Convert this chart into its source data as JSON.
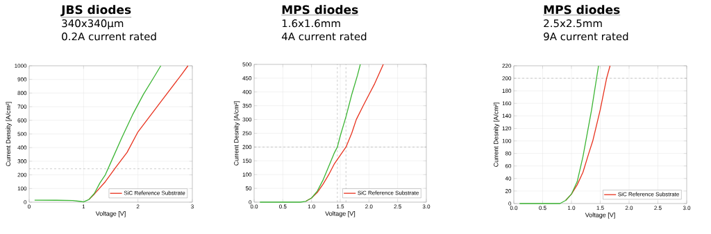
{
  "chart_data": [
    {
      "type": "line",
      "title": "JBS diodes",
      "subtitle": [
        "340x340µm",
        "0.2A current rated"
      ],
      "xlabel": "Voltage [V]",
      "ylabel": "Current Density [A/cm²]",
      "xlim": [
        0,
        3
      ],
      "ylim": [
        0,
        1000
      ],
      "xticks": [
        0,
        1,
        2,
        3
      ],
      "yticks": [
        0,
        100,
        200,
        300,
        400,
        500,
        600,
        700,
        800,
        900,
        1000
      ],
      "grid": true,
      "legend": "bottom right",
      "line_style": "solid",
      "marker": "none",
      "ref_lines": [
        {
          "axis": "y",
          "value": 245,
          "color": "#808080",
          "line_style": "dashed"
        }
      ],
      "series": [
        {
          "name": "SiC Reference Substrate",
          "color": "#e8321e",
          "x": [
            1.1,
            1.2,
            1.4,
            1.6,
            1.8,
            2.0,
            2.2,
            2.4,
            2.6,
            2.8,
            2.92
          ],
          "values": [
            20,
            60,
            150,
            260,
            365,
            515,
            620,
            725,
            830,
            935,
            1000
          ]
        },
        {
          "color": "#3cb534",
          "x": [
            0.1,
            0.5,
            0.8,
            0.95,
            1.0,
            1.1,
            1.2,
            1.3,
            1.4,
            1.5,
            1.7,
            1.9,
            2.1,
            2.3,
            2.42
          ],
          "values": [
            15,
            14,
            12,
            5,
            2,
            20,
            65,
            140,
            200,
            290,
            470,
            640,
            790,
            920,
            1000
          ]
        }
      ]
    },
    {
      "type": "line",
      "title": "MPS diodes",
      "subtitle": [
        "1.6x1.6mm",
        "4A current rated"
      ],
      "xlabel": "Voltage [V]",
      "ylabel": "Current Desnity [A/cm²]",
      "xlim": [
        0,
        3
      ],
      "ylim": [
        0,
        500
      ],
      "xticks": [
        {
          "value": 0,
          "label": "0.0"
        },
        0.5,
        {
          "value": 1,
          "label": "1.0"
        },
        1.5,
        {
          "value": 2,
          "label": "2.0"
        },
        2.5,
        {
          "value": 3,
          "label": "3.0"
        }
      ],
      "yticks": [
        0,
        50,
        100,
        150,
        200,
        250,
        300,
        350,
        400,
        450,
        500
      ],
      "grid": true,
      "legend": "bottom right",
      "line_style": "solid",
      "marker": "none",
      "ref_lines": [
        {
          "axis": "y",
          "value": 200,
          "color": "#808080",
          "line_style": "dashed"
        },
        {
          "axis": "x",
          "value": 1.45,
          "color": "#808080",
          "line_style": "dashed"
        },
        {
          "axis": "x",
          "value": 1.6,
          "color": "#808080",
          "line_style": "dashed"
        }
      ],
      "series": [
        {
          "name": "SiC Reference Substrate",
          "color": "#e8321e",
          "x": [
            0.9,
            1.0,
            1.1,
            1.2,
            1.3,
            1.4,
            1.5,
            1.6,
            1.7,
            1.78,
            1.9,
            2.0,
            2.1,
            2.25
          ],
          "values": [
            3,
            15,
            35,
            65,
            100,
            140,
            170,
            200,
            250,
            300,
            350,
            390,
            430,
            500
          ]
        },
        {
          "color": "#3cb534",
          "x": [
            0.1,
            0.8,
            0.9,
            1.0,
            1.1,
            1.2,
            1.3,
            1.4,
            1.45,
            1.5,
            1.6,
            1.7,
            1.8,
            1.85
          ],
          "values": [
            0,
            0,
            3,
            15,
            40,
            80,
            130,
            180,
            200,
            240,
            310,
            390,
            460,
            500
          ]
        }
      ]
    },
    {
      "type": "line",
      "title": "MPS diodes",
      "subtitle": [
        "2.5x2.5mm",
        "9A current rated"
      ],
      "xlabel": "Voltage [V]",
      "ylabel": "Current Desnity [A/cm²]",
      "xlim": [
        0,
        3
      ],
      "ylim": [
        0,
        220
      ],
      "xticks": [
        {
          "value": 0,
          "label": "0.0"
        },
        0.5,
        {
          "value": 1,
          "label": "1.0"
        },
        1.5,
        {
          "value": 2,
          "label": "2.0"
        },
        2.5,
        {
          "value": 3,
          "label": "3.0"
        }
      ],
      "yticks": [
        0,
        20,
        40,
        60,
        80,
        100,
        120,
        140,
        160,
        180,
        200,
        220
      ],
      "grid": true,
      "legend": "bottom right",
      "line_style": "solid",
      "marker": "none",
      "ref_lines": [
        {
          "axis": "y",
          "value": 200,
          "color": "#808080",
          "line_style": "dashed"
        }
      ],
      "series": [
        {
          "name": "SiC Reference Substrate",
          "color": "#e8321e",
          "x": [
            0.9,
            1.0,
            1.1,
            1.2,
            1.3,
            1.37,
            1.5,
            1.61,
            1.67
          ],
          "values": [
            5,
            15,
            30,
            50,
            80,
            100,
            150,
            200,
            220
          ]
        },
        {
          "color": "#3cb534",
          "x": [
            0.1,
            0.8,
            0.9,
            1.0,
            1.1,
            1.2,
            1.25,
            1.35,
            1.47
          ],
          "values": [
            0,
            0,
            5,
            15,
            35,
            75,
            100,
            150,
            220
          ]
        }
      ]
    }
  ]
}
